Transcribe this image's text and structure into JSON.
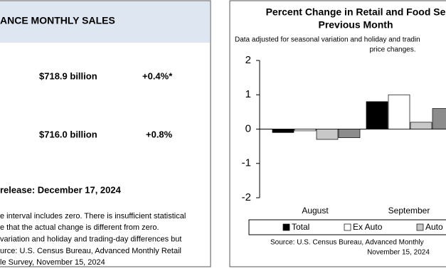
{
  "summary": {
    "title": "ANCE MONTHLY SALES",
    "rows": [
      {
        "amount": "$718.9 billion",
        "change": "+0.4%*"
      },
      {
        "amount": "$716.0 billion",
        "change": "+0.8%"
      }
    ],
    "release": "release: December 17, 2024",
    "notes": [
      "e interval includes zero. There is insufficient statistical",
      "e that the actual change is different from zero.",
      "variation and holiday and trading-day differences but",
      "urce: U.S. Census Bureau, Advanced Monthly Retail",
      "le Survey, November 15, 2024"
    ]
  },
  "chart_data": {
    "type": "bar",
    "title": [
      "Percent Change in Retail and Food Se",
      "Previous Month"
    ],
    "subtitle": [
      "Data adjusted for seasonal variation and holiday and tradin",
      "price changes."
    ],
    "categories": [
      "August",
      "September"
    ],
    "series": [
      {
        "name": "Total",
        "color": "#000000",
        "values": [
          -0.1,
          0.8
        ]
      },
      {
        "name": "Ex Auto",
        "color": "#ffffff",
        "values": [
          -0.05,
          1.0
        ]
      },
      {
        "name": "Auto",
        "color": "#c8c8c8",
        "values": [
          -0.3,
          0.2
        ]
      },
      {
        "name": null,
        "color": "#8c8c8c",
        "values": [
          -0.25,
          0.6
        ]
      }
    ],
    "ylim": [
      -2,
      2
    ],
    "yticks": [
      -2,
      -1,
      0,
      1,
      2
    ],
    "source": [
      "Source: U.S. Census Bureau, Advanced Monthly",
      "November 15, 2024"
    ]
  }
}
